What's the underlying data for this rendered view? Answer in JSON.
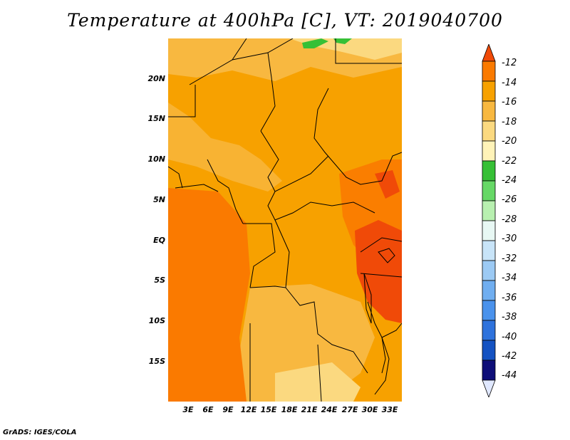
{
  "title": "Temperature at 400hPa [C], VT: 2019040700",
  "credit": "GrADS: IGES/COLA",
  "lat_labels": [
    "20N",
    "15N",
    "10N",
    "5N",
    "EQ",
    "5S",
    "10S",
    "15S"
  ],
  "lon_labels": [
    "3E",
    "6E",
    "9E",
    "12E",
    "15E",
    "18E",
    "21E",
    "24E",
    "27E",
    "30E",
    "33E"
  ],
  "colorbar": {
    "labels": [
      "-12",
      "-14",
      "-16",
      "-18",
      "-20",
      "-22",
      "-24",
      "-26",
      "-28",
      "-30",
      "-32",
      "-34",
      "-36",
      "-38",
      "-40",
      "-42",
      "-44"
    ],
    "colors": [
      "#f04a08",
      "#fa7a00",
      "#f7a100",
      "#f8b840",
      "#fbd980",
      "#fff3b8",
      "#36c036",
      "#66d866",
      "#b8f0b0",
      "#e8f8f4",
      "#c8e4f8",
      "#9ccaf4",
      "#70aef0",
      "#4a92ec",
      "#2e72dc",
      "#1452c2",
      "#0e0e78",
      "#e0e8ff"
    ]
  },
  "field_colors": {
    "dominant": "#f7a100",
    "lighter": "#f8b840",
    "pale": "#fbd980",
    "warm": "#fa7a00",
    "hot": "#f04a08",
    "green": "#36c036"
  }
}
